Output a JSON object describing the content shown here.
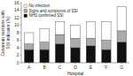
{
  "chart_data": {
    "type": "bar",
    "stacked": true,
    "xlabel": "Hospital",
    "ylabel": "Cesarean sections with SSI indicator (%)",
    "categories": [
      "A",
      "B",
      "C",
      "D",
      "E",
      "F",
      "G"
    ],
    "series": [
      {
        "name": "NHS confirmed SSI",
        "color": "#111111",
        "values": [
          3.5,
          3.5,
          5.0,
          4.0,
          4.5,
          3.5,
          5.5
        ]
      },
      {
        "name": "Signs and symptoms of SSI",
        "color": "#aaaaaa",
        "values": [
          1.5,
          2.0,
          2.5,
          2.5,
          2.0,
          2.5,
          3.0
        ]
      },
      {
        "name": "No infection",
        "color": "#ffffff",
        "values": [
          3.0,
          3.5,
          3.5,
          3.5,
          4.5,
          5.0,
          6.5
        ]
      }
    ],
    "ylim": [
      0,
      16
    ],
    "yticks": [
      0,
      2,
      4,
      6,
      8,
      10,
      12,
      14,
      16
    ],
    "grid": false,
    "legend": "upper left"
  }
}
